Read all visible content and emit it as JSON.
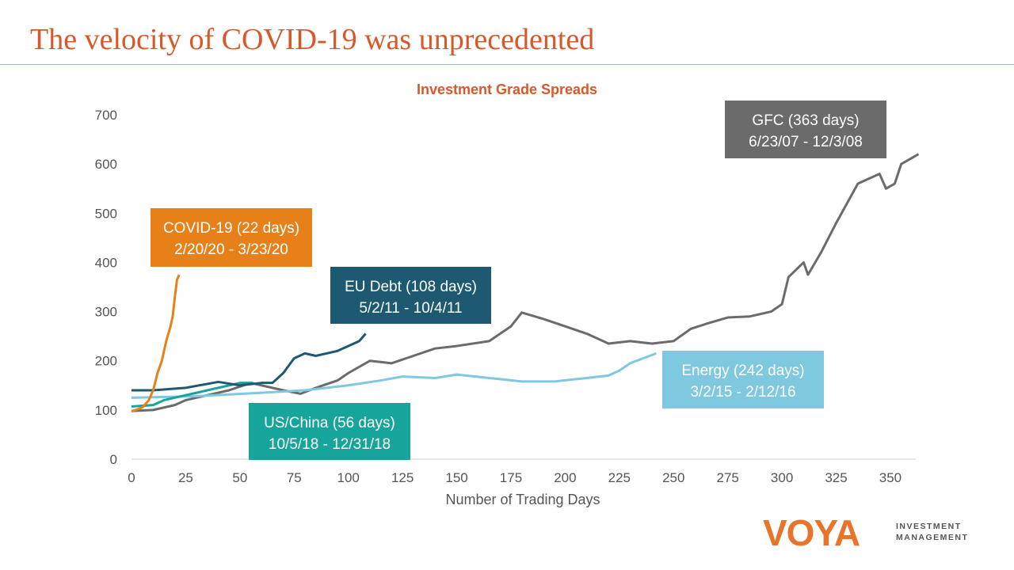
{
  "header": {
    "title": "The velocity of COVID-19 was unprecedented"
  },
  "logo": {
    "brand": "VOYA",
    "sub1": "INVESTMENT",
    "sub2": "MANAGEMENT"
  },
  "chart_data": {
    "type": "line",
    "title": "Investment Grade Spreads",
    "xlabel": "Number of Trading Days",
    "ylabel": "",
    "xlim": [
      0,
      363
    ],
    "ylim": [
      0,
      700
    ],
    "xticks": [
      0,
      25,
      50,
      75,
      100,
      125,
      150,
      175,
      200,
      225,
      250,
      275,
      300,
      325,
      350
    ],
    "yticks": [
      0,
      100,
      200,
      300,
      400,
      500,
      600,
      700
    ],
    "grid": false,
    "series": [
      {
        "name": "COVID-19 (22 days)",
        "dates": "2/20/20 - 3/23/20",
        "color": "#e8801a",
        "x": [
          0,
          5,
          8,
          10,
          12,
          14,
          16,
          18,
          19,
          20,
          21,
          22
        ],
        "y": [
          97,
          105,
          120,
          140,
          175,
          200,
          240,
          270,
          290,
          330,
          365,
          375
        ]
      },
      {
        "name": "EU Debt (108 days)",
        "dates": "5/2/11 - 10/4/11",
        "color": "#1d5a72",
        "x": [
          0,
          10,
          25,
          40,
          50,
          60,
          65,
          70,
          75,
          80,
          85,
          95,
          100,
          105,
          108
        ],
        "y": [
          140,
          140,
          145,
          157,
          150,
          155,
          155,
          175,
          205,
          215,
          210,
          220,
          230,
          240,
          255
        ]
      },
      {
        "name": "US/China (56 days)",
        "dates": "10/5/18 - 12/31/18",
        "color": "#17a49a",
        "x": [
          0,
          10,
          15,
          20,
          30,
          40,
          45,
          50,
          56
        ],
        "y": [
          107,
          110,
          120,
          125,
          135,
          145,
          150,
          155,
          155
        ]
      },
      {
        "name": "Energy (242 days)",
        "dates": "3/2/15 - 2/12/16",
        "color": "#7ec8e0",
        "x": [
          0,
          30,
          60,
          80,
          100,
          115,
          125,
          140,
          150,
          165,
          180,
          195,
          210,
          220,
          225,
          230,
          236,
          242
        ],
        "y": [
          125,
          128,
          135,
          140,
          150,
          160,
          168,
          165,
          172,
          165,
          158,
          158,
          165,
          170,
          180,
          195,
          205,
          215
        ]
      },
      {
        "name": "GFC (363 days)",
        "dates": "6/23/07 - 12/3/08",
        "color": "#6b6b6b",
        "x": [
          0,
          10,
          20,
          25,
          35,
          45,
          55,
          70,
          78,
          85,
          95,
          100,
          110,
          120,
          130,
          140,
          150,
          165,
          175,
          180,
          190,
          200,
          210,
          220,
          230,
          240,
          250,
          258,
          265,
          275,
          285,
          295,
          300,
          303,
          310,
          312,
          318,
          325,
          330,
          335,
          340,
          345,
          348,
          352,
          355,
          363
        ],
        "y": [
          98,
          100,
          110,
          120,
          130,
          140,
          155,
          140,
          133,
          145,
          160,
          175,
          200,
          195,
          210,
          225,
          230,
          240,
          270,
          298,
          285,
          270,
          255,
          235,
          240,
          235,
          240,
          265,
          275,
          288,
          290,
          300,
          315,
          370,
          400,
          375,
          420,
          480,
          520,
          560,
          570,
          580,
          550,
          560,
          600,
          620
        ]
      }
    ]
  }
}
